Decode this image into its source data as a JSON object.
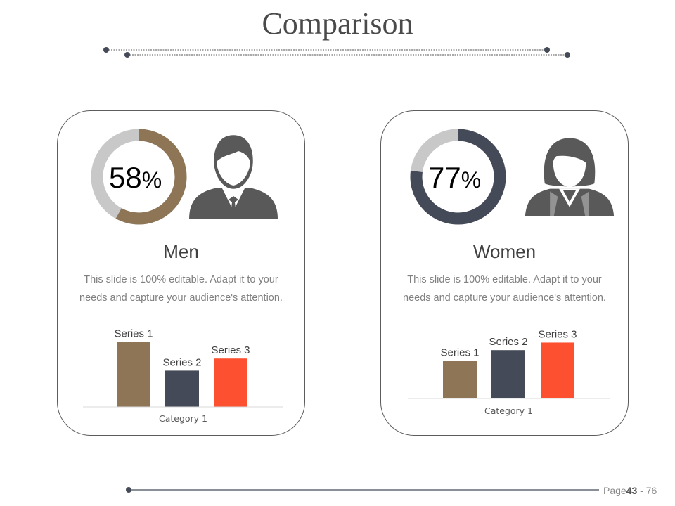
{
  "title": "Comparison",
  "colors": {
    "brown": "#8d7556",
    "navy": "#454a58",
    "orange": "#fc5031",
    "gray": "#c8c8c8",
    "text": "#404040"
  },
  "cards": [
    {
      "heading": "Men",
      "percent": "58",
      "percent_symbol": "%",
      "donut_value": 58,
      "donut_color": "#8d7556",
      "icon": "male-person-icon",
      "desc_line1": "This slide is 100% editable. Adapt it to your",
      "desc_line2": "needs and capture your audience's attention."
    },
    {
      "heading": "Women",
      "percent": "77",
      "percent_symbol": "%",
      "donut_value": 77,
      "donut_color": "#454a58",
      "icon": "female-person-icon",
      "desc_line1": "This slide is 100% editable. Adapt it to your",
      "desc_line2": "needs and capture your audience's attention."
    }
  ],
  "chart_data": [
    {
      "type": "bar",
      "categories": [
        "Category 1"
      ],
      "series": [
        {
          "name": "Series 1",
          "values": [
            4.3
          ],
          "color": "#8d7556"
        },
        {
          "name": "Series 2",
          "values": [
            2.4
          ],
          "color": "#454a58"
        },
        {
          "name": "Series 3",
          "values": [
            3.2
          ],
          "color": "#fc5031"
        }
      ],
      "ylim": [
        0,
        5
      ],
      "legend": "data-labels",
      "grid": false
    },
    {
      "type": "bar",
      "categories": [
        "Category 1"
      ],
      "series": [
        {
          "name": "Series 1",
          "values": [
            2.5
          ],
          "color": "#8d7556"
        },
        {
          "name": "Series 2",
          "values": [
            3.2
          ],
          "color": "#454a58"
        },
        {
          "name": "Series 3",
          "values": [
            3.7
          ],
          "color": "#fc5031"
        }
      ],
      "ylim": [
        0,
        5
      ],
      "legend": "data-labels",
      "grid": false
    }
  ],
  "footer": {
    "page_label": "Page",
    "page_num": "43",
    "page_sep": " - ",
    "page_total": "76"
  }
}
